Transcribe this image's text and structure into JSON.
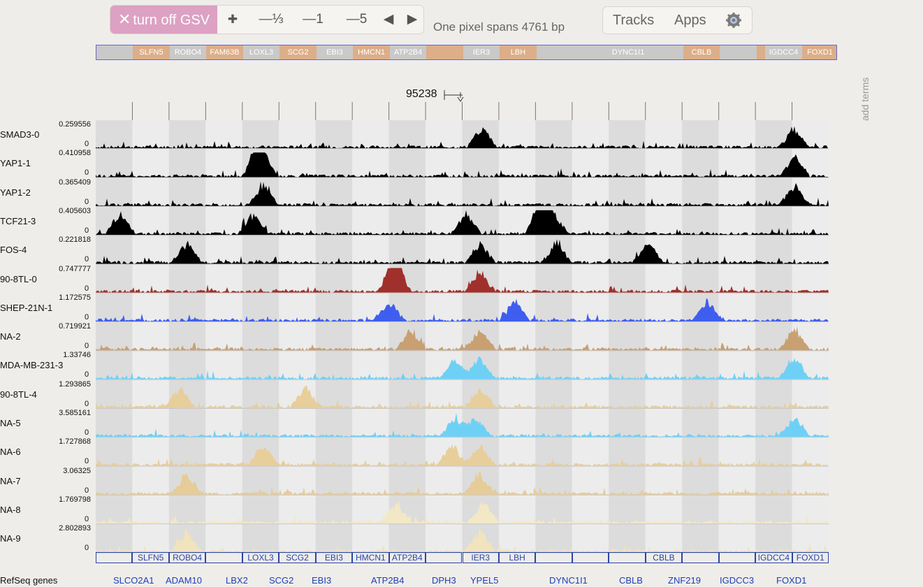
{
  "toolbar": {
    "gsv_label": "turn off GSV",
    "gsv_x": "✕",
    "zoom_in": "✚",
    "zoom_third": "—⅓",
    "zoom_one": "—1",
    "zoom_five": "—5",
    "pan_left": "◀",
    "pan_right": "▶"
  },
  "pixel_note": "One pixel spans 4761 bp",
  "menu": {
    "tracks": "Tracks",
    "apps": "Apps",
    "settings_icon": "gear-icon"
  },
  "overview_genes": [
    "",
    "SLFN5",
    "ROBO4",
    "FAM63B",
    "LOXL3",
    "SCG2",
    "EBI3",
    "HMCN1",
    "ATP2B4",
    "",
    "IER3",
    "LBH",
    "",
    "DYNC1I1",
    "",
    "CBLB",
    "",
    "",
    "IGDCC4",
    "FOXD1"
  ],
  "add_terms": "add terms",
  "coordinate": "95238",
  "tracks": [
    {
      "name": "SMAD3-0",
      "max": "0.259556",
      "zero": "0",
      "color": "#000000"
    },
    {
      "name": "YAP1-1",
      "max": "0.410958",
      "zero": "0",
      "color": "#000000"
    },
    {
      "name": "YAP1-2",
      "max": "0.365409",
      "zero": "0",
      "color": "#000000"
    },
    {
      "name": "TCF21-3",
      "max": "0.405603",
      "zero": "0",
      "color": "#000000"
    },
    {
      "name": "FOS-4",
      "max": "0.221818",
      "zero": "0",
      "color": "#000000"
    },
    {
      "name": "90-8TL-0",
      "max": "0.747777",
      "zero": "0",
      "color": "#a0302b"
    },
    {
      "name": "SHEP-21N-1",
      "max": "1.172575",
      "zero": "0",
      "color": "#3f5ef0"
    },
    {
      "name": "NA-2",
      "max": "0.719921",
      "zero": "0",
      "color": "#c9a071"
    },
    {
      "name": "MDA-MB-231-3",
      "max": "1.33746",
      "zero": "0",
      "color": "#6fd0f6"
    },
    {
      "name": "90-8TL-4",
      "max": "1.293865",
      "zero": "0",
      "color": "#e8ce9b"
    },
    {
      "name": "NA-5",
      "max": "3.585161",
      "zero": "0",
      "color": "#6fd0f6"
    },
    {
      "name": "NA-6",
      "max": "1.727868",
      "zero": "0",
      "color": "#e8ce9b"
    },
    {
      "name": "NA-7",
      "max": "3.06325",
      "zero": "0",
      "color": "#e6cc98"
    },
    {
      "name": "NA-8",
      "max": "1.769798",
      "zero": "0",
      "color": "#f3e8c6"
    },
    {
      "name": "NA-9",
      "max": "2.802893",
      "zero": "0",
      "color": "#f0e3bd"
    }
  ],
  "gene_row": [
    "",
    "SLFN5",
    "ROBO4",
    "",
    "LOXL3",
    "SCG2",
    "EBI3",
    "HMCN1",
    "ATP2B4",
    "",
    "IER3",
    "LBH",
    "",
    "",
    "",
    "CBLB",
    "",
    "",
    "IGDCC4",
    "FOXD1"
  ],
  "refseq_label": "RefSeq genes",
  "refseq_genes": [
    "SLCO2A1",
    "ADAM10",
    "LBX2",
    "SCG2",
    "EBI3",
    "ATP2B4",
    "DPH3",
    "YPEL5",
    "DYNC1I1",
    "CBLB",
    "ZNF219",
    "IGDCC3",
    "FOXD1"
  ]
}
